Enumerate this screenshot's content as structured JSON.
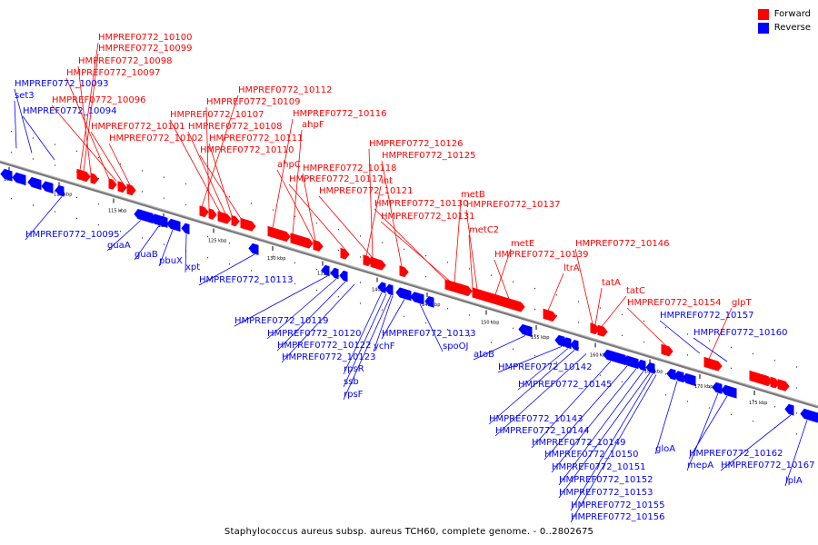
{
  "legend": [
    {
      "label": "Forward",
      "color": "#ff0000"
    },
    {
      "label": "Reverse",
      "color": "#0000ff"
    }
  ],
  "caption": "Staphylococcus aureus subsp. aureus TCH60, complete genome. - 0..2802675",
  "colors": {
    "forward": "#ff0000",
    "reverse": "#0000ff",
    "backbone": "#888888"
  },
  "ticks": [
    "105 kbp",
    "110 kbp",
    "115 kbp",
    "120 kbp",
    "125 kbp",
    "130 kbp",
    "135 kbp",
    "140 kbp",
    "145 kbp",
    "150 kbp",
    "155 kbp",
    "160 kbp",
    "165 kbp",
    "170 kbp",
    "175 kbp"
  ],
  "forward_labels": [
    "HMPREF0772_10100",
    "HMPREF0772_10099",
    "HMPREF0772_10098",
    "HMPREF0772_10097",
    "HMPREF0772_10096",
    "HMPREF0772_10101",
    "HMPREF0772_10102",
    "HMPREF0772_10112",
    "HMPREF0772_10109",
    "HMPREF0772_10107",
    "HMPREF0772_10108",
    "HMPREF0772_10111",
    "HMPREF0772_10110",
    "HMPREF0772_10116",
    "ahpF",
    "ahpC",
    "HMPREF0772_10118",
    "HMPREF0772_10117",
    "int",
    "HMPREF0772_10121",
    "HMPREF0772_10126",
    "HMPREF0772_10125",
    "HMPREF0772_10130",
    "HMPREF0772_10131",
    "metB",
    "HMPREF0772_10137",
    "metC2",
    "metE",
    "HMPREF0772_10139",
    "ltrA",
    "HMPREF0772_10146",
    "tatA",
    "tatC",
    "HMPREF0772_10154",
    "glpT"
  ],
  "reverse_labels": [
    "set3",
    "HMPREF0772_10093",
    "HMPREF0772_10094",
    "HMPREF0772_10095",
    "guaA",
    "guaB",
    "pbuX",
    "xpt",
    "HMPREF0772_10113",
    "HMPREF0772_10119",
    "HMPREF0772_10120",
    "HMPREF0772_10122",
    "HMPREF0772_10123",
    "rpsR",
    "ssb",
    "rpsF",
    "ychF",
    "HMPREF0772_10133",
    "spoOJ",
    "atoB",
    "HMPREF0772_10142",
    "HMPREF0772_10145",
    "HMPREF0772_10143",
    "HMPREF0772_10144",
    "HMPREF0772_10149",
    "HMPREF0772_10150",
    "HMPREF0772_10151",
    "HMPREF0772_10152",
    "HMPREF0772_10153",
    "HMPREF0772_10155",
    "HMPREF0772_10156",
    "gloA",
    "mepA",
    "HMPREF0772_10162",
    "HMPREF0772_10157",
    "HMPREF0772_10160",
    "HMPREF0772_10167",
    "lplA"
  ]
}
